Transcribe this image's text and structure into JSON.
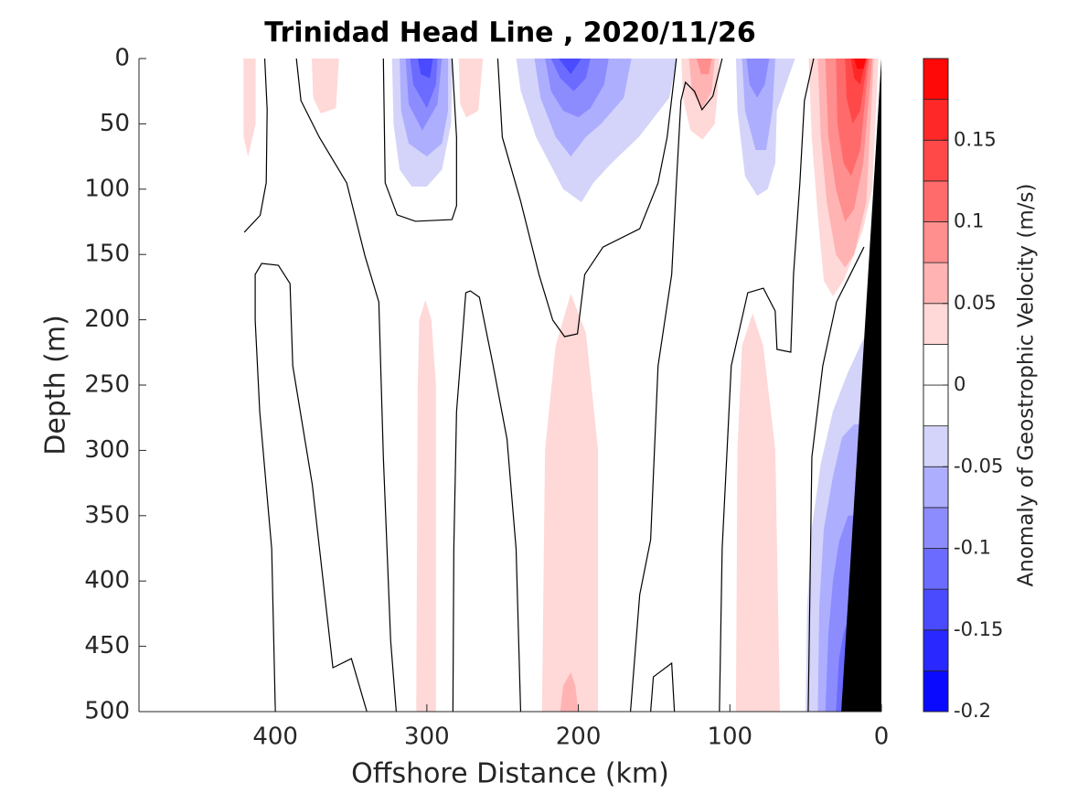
{
  "chart_data": {
    "type": "contourf",
    "title": "Trinidad Head Line , 2020/11/26",
    "xlabel": "Offshore Distance (km)",
    "ylabel": "Depth (m)",
    "colorbar_label": "Anomaly of Geostrophic Velocity (m/s)",
    "xlim": [
      490,
      0
    ],
    "xticks": [
      400,
      300,
      200,
      100,
      0
    ],
    "ylim": [
      0,
      500
    ],
    "yticks": [
      0,
      50,
      100,
      150,
      200,
      250,
      300,
      350,
      400,
      450,
      500
    ],
    "y_reversed": true,
    "clim": [
      -0.2,
      0.2
    ],
    "cticks": [
      -0.2,
      -0.15,
      -0.1,
      -0.05,
      0,
      0.05,
      0.1,
      0.15
    ],
    "levels": [
      -0.2,
      -0.175,
      -0.15,
      -0.125,
      -0.1,
      -0.075,
      -0.05,
      -0.025,
      0,
      0.025,
      0.05,
      0.075,
      0.1,
      0.125,
      0.15,
      0.175,
      0.2
    ],
    "colors": [
      "#0a0aff",
      "#2828ff",
      "#4a4aff",
      "#6b6bff",
      "#8c8cff",
      "#aeaeff",
      "#d4d4fa",
      "#ffffff",
      "#ffffff",
      "#ffd8d8",
      "#ffb3b3",
      "#ff8e8e",
      "#ff6b6b",
      "#ff4949",
      "#ff2828",
      "#ff0808"
    ],
    "regions": [
      {
        "level": -0.05,
        "x": [
          323,
          322,
          318,
          310,
          300,
          290,
          284,
          283
        ],
        "y": [
          0,
          50,
          85,
          98,
          98,
          85,
          50,
          0
        ]
      },
      {
        "level": -0.075,
        "x": [
          318,
          317,
          312,
          300,
          290,
          286,
          286
        ],
        "y": [
          0,
          40,
          65,
          75,
          65,
          40,
          0
        ]
      },
      {
        "level": -0.1,
        "x": [
          314,
          312,
          303,
          293,
          290
        ],
        "y": [
          0,
          35,
          55,
          35,
          0
        ]
      },
      {
        "level": -0.125,
        "x": [
          311,
          309,
          300,
          294,
          293
        ],
        "y": [
          0,
          20,
          38,
          20,
          0
        ]
      },
      {
        "level": -0.15,
        "x": [
          306,
          304,
          298,
          296
        ],
        "y": [
          0,
          12,
          15,
          0
        ]
      },
      {
        "level": -0.05,
        "x": [
          241,
          238,
          228,
          210,
          198,
          190,
          178,
          160,
          140,
          135
        ],
        "y": [
          0,
          25,
          60,
          100,
          110,
          95,
          80,
          60,
          30,
          0
        ]
      },
      {
        "level": -0.075,
        "x": [
          229,
          225,
          215,
          205,
          195,
          185,
          170,
          165
        ],
        "y": [
          0,
          30,
          60,
          75,
          60,
          50,
          30,
          0
        ]
      },
      {
        "level": -0.1,
        "x": [
          222,
          218,
          210,
          200,
          192,
          183,
          180
        ],
        "y": [
          0,
          25,
          40,
          45,
          38,
          20,
          0
        ]
      },
      {
        "level": -0.125,
        "x": [
          218,
          212,
          203,
          195,
          192
        ],
        "y": [
          0,
          15,
          25,
          15,
          0
        ]
      },
      {
        "level": -0.15,
        "x": [
          213,
          205,
          198
        ],
        "y": [
          0,
          12,
          0
        ]
      },
      {
        "level": -0.05,
        "x": [
          96,
          95,
          90,
          82,
          75,
          70,
          69,
          57
        ],
        "y": [
          0,
          40,
          90,
          105,
          100,
          80,
          40,
          0
        ]
      },
      {
        "level": -0.075,
        "x": [
          92,
          90,
          83,
          76,
          72,
          70
        ],
        "y": [
          0,
          40,
          70,
          70,
          40,
          0
        ]
      },
      {
        "level": -0.1,
        "x": [
          89,
          87,
          82,
          77,
          74
        ],
        "y": [
          0,
          20,
          30,
          20,
          0
        ]
      },
      {
        "level": 0.025,
        "x": [
          132,
          131,
          126,
          118,
          110,
          108,
          107
        ],
        "y": [
          0,
          30,
          55,
          62,
          50,
          25,
          0
        ]
      },
      {
        "level": 0.05,
        "x": [
          127,
          125,
          118,
          112,
          110
        ],
        "y": [
          0,
          25,
          38,
          25,
          0
        ]
      },
      {
        "level": 0.075,
        "x": [
          122,
          119,
          114,
          112
        ],
        "y": [
          0,
          12,
          12,
          0
        ]
      },
      {
        "level": 0.025,
        "x": [
          48,
          46,
          42,
          38,
          32,
          25,
          18,
          12,
          6,
          2
        ],
        "y": [
          0,
          60,
          120,
          170,
          182,
          170,
          150,
          130,
          100,
          0
        ]
      },
      {
        "level": 0.05,
        "x": [
          42,
          40,
          36,
          30,
          24,
          18,
          10,
          5
        ],
        "y": [
          0,
          60,
          110,
          150,
          160,
          150,
          110,
          0
        ]
      },
      {
        "level": 0.075,
        "x": [
          37,
          35,
          30,
          24,
          18,
          12,
          6
        ],
        "y": [
          0,
          60,
          100,
          125,
          115,
          80,
          0
        ]
      },
      {
        "level": 0.1,
        "x": [
          30,
          29,
          25,
          20,
          14,
          8
        ],
        "y": [
          0,
          50,
          80,
          90,
          70,
          0
        ]
      },
      {
        "level": 0.125,
        "x": [
          24,
          23,
          19,
          14,
          9
        ],
        "y": [
          0,
          30,
          50,
          40,
          0
        ]
      },
      {
        "level": 0.15,
        "x": [
          20,
          18,
          14,
          10
        ],
        "y": [
          0,
          15,
          20,
          0
        ]
      },
      {
        "level": 0.175,
        "x": [
          18,
          16,
          12,
          10
        ],
        "y": [
          0,
          8,
          8,
          0
        ]
      },
      {
        "level": 0.025,
        "x": [
          421,
          421,
          418,
          413,
          413
        ],
        "y": [
          0,
          60,
          75,
          50,
          0
        ]
      },
      {
        "level": 0.025,
        "x": [
          376,
          375,
          370,
          360,
          358
        ],
        "y": [
          0,
          30,
          42,
          38,
          0
        ]
      },
      {
        "level": 0.025,
        "x": [
          279,
          278,
          274,
          266,
          263
        ],
        "y": [
          0,
          35,
          45,
          40,
          0
        ]
      },
      {
        "level": 0.025,
        "x": [
          307,
          306,
          305,
          301,
          297,
          294,
          294
        ],
        "y": [
          500,
          250,
          200,
          185,
          200,
          250,
          500
        ]
      },
      {
        "level": 0.025,
        "x": [
          224,
          222,
          215,
          205,
          195,
          187,
          187
        ],
        "y": [
          500,
          300,
          220,
          180,
          210,
          300,
          500
        ]
      },
      {
        "level": 0.05,
        "x": [
          212,
          210,
          205,
          202,
          200
        ],
        "y": [
          500,
          480,
          470,
          480,
          500
        ]
      },
      {
        "level": 0.025,
        "x": [
          96,
          95,
          92,
          85,
          78,
          70,
          67
        ],
        "y": [
          500,
          300,
          220,
          195,
          220,
          300,
          500
        ]
      },
      {
        "level": -0.05,
        "x": [
          50,
          49,
          46,
          40,
          32,
          22,
          12,
          6,
          0,
          0
        ],
        "y": [
          500,
          420,
          360,
          310,
          270,
          240,
          215,
          205,
          205,
          500
        ]
      },
      {
        "level": -0.075,
        "x": [
          42,
          41,
          38,
          32,
          26,
          18,
          0,
          0
        ],
        "y": [
          500,
          420,
          360,
          320,
          290,
          280,
          280,
          500
        ]
      },
      {
        "level": -0.1,
        "x": [
          37,
          35,
          32,
          28,
          22,
          0,
          0
        ],
        "y": [
          500,
          440,
          400,
          370,
          350,
          350,
          500
        ]
      },
      {
        "level": -0.125,
        "x": [
          30,
          28,
          25,
          22,
          0,
          0
        ],
        "y": [
          500,
          460,
          440,
          430,
          430,
          500
        ]
      }
    ],
    "contour_lines": [
      {
        "x": [
          420.5,
          410,
          406,
          405.4,
          407
        ],
        "y": [
          133,
          120,
          95,
          39,
          0
        ]
      },
      {
        "x": [
          400,
          402.4,
          410.3,
          413.3,
          413.3,
          409,
          398,
          390.3,
          388.5,
          375.6,
          362,
          349.8,
          339.6
        ],
        "y": [
          500,
          375.4,
          270.3,
          200.3,
          165.3,
          156.9,
          158.3,
          172.3,
          235.3,
          326.3,
          466.4,
          459.4,
          500
        ]
      },
      {
        "x": [
          386.1,
          383.1,
          371,
          352.9,
          340.8,
          331.7,
          328.7,
          323.9,
          320.2
        ],
        "y": [
          0,
          32.2,
          60.2,
          95.2,
          151.3,
          186.3,
          305.3,
          445.4,
          500
        ]
      },
      {
        "x": [
          328.7,
          327.5,
          319.6,
          307.6,
          283.4,
          280.4,
          280.4,
          283.4
        ],
        "y": [
          0,
          95.2,
          119.7,
          124.6,
          123.3,
          112.8,
          60.2,
          0
        ]
      },
      {
        "x": [
          282.8,
          282.2,
          280.4,
          274.3,
          271.3,
          265.3,
          256.2,
          247.1,
          241.1,
          238.1
        ],
        "y": [
          500,
          375.4,
          270.3,
          179.3,
          177.9,
          182.8,
          235.3,
          291.3,
          375.4,
          500
        ]
      },
      {
        "x": [
          253.2,
          250.2,
          238.1,
          226,
          216.9,
          209.1,
          200.6,
          195.8,
          183.7,
          159.5,
          147.4,
          141.4,
          135.3
        ],
        "y": [
          0,
          60.2,
          109.2,
          165.3,
          200.3,
          212.9,
          210.8,
          165.3,
          144.3,
          130.3,
          95.2,
          60.2,
          0
        ]
      },
      {
        "x": [
          165.6,
          159.5,
          152.3,
          147.4,
          138.4,
          135.3,
          132.3,
          129.3,
          123.3,
          118.4,
          111.2,
          105.1
        ],
        "y": [
          500,
          410.4,
          368.4,
          235.3,
          165.3,
          95.2,
          32.2,
          18.2,
          25.2,
          39.2,
          28.7,
          0
        ]
      },
      {
        "x": [
          152.3,
          150.5,
          138.4,
          136.6
        ],
        "y": [
          500,
          473.4,
          462.9,
          500
        ]
      },
      {
        "x": [
          106.9,
          105.1,
          99.1,
          88.2,
          77.9,
          70.1,
          68.9,
          59.8,
          58,
          53.8,
          50.8,
          44.7
        ],
        "y": [
          500,
          375.4,
          235.3,
          179.3,
          175.8,
          193.3,
          222.7,
          224.8,
          165.3,
          95.2,
          32.2,
          0
        ]
      },
      {
        "x": [
          48.3,
          45.9,
          38.7,
          29.6,
          20.5,
          11.5
        ],
        "y": [
          500,
          305.3,
          235.3,
          186.3,
          165.3,
          144.3
        ]
      }
    ],
    "bathymetry": {
      "color": "#000000",
      "x": [
        0,
        26.5
      ],
      "y": [
        0,
        500
      ]
    }
  }
}
